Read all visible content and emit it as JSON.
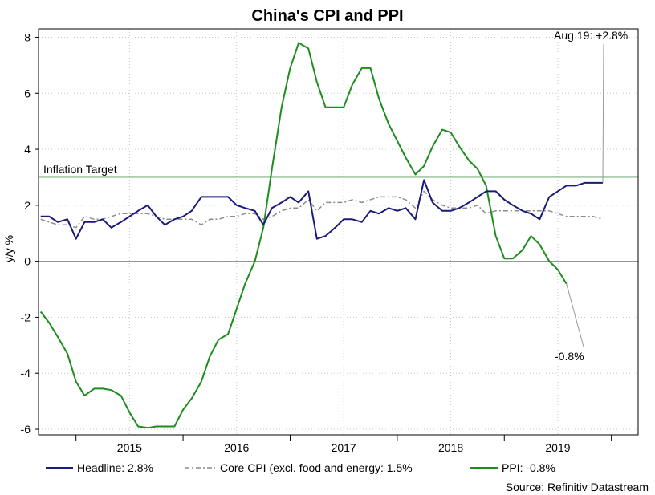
{
  "chart_data": {
    "type": "line",
    "title": "China's CPI and PPI",
    "ylabel": "y/y %",
    "xlabel": "",
    "ylim": [
      -6.2,
      8.3
    ],
    "y_ticks": [
      -6,
      -4,
      -2,
      0,
      2,
      4,
      6,
      8
    ],
    "x_tick_labels": [
      "2015",
      "2016",
      "2017",
      "2018",
      "2019"
    ],
    "x_tick_values": [
      2015.0,
      2016.0,
      2017.0,
      2018.0,
      2019.0
    ],
    "x_range": [
      2014.15,
      2019.75
    ],
    "grid": true,
    "legend_position": "bottom",
    "colors": {
      "headline": "#1a1a7a",
      "core": "#8c8c8c",
      "ppi": "#1e8c1e",
      "target": "#7fb07f",
      "zero": "#888888",
      "grid": "#c8c8c8"
    },
    "reference_lines": [
      {
        "name": "Inflation Target",
        "y": 3.0
      },
      {
        "name": "",
        "y": 0.0
      }
    ],
    "series": [
      {
        "name": "Headline: 2.8%",
        "points": [
          [
            2014.17,
            1.6
          ],
          [
            2014.25,
            1.6
          ],
          [
            2014.33,
            1.4
          ],
          [
            2014.42,
            1.5
          ],
          [
            2014.5,
            0.8
          ],
          [
            2014.58,
            1.4
          ],
          [
            2014.67,
            1.4
          ],
          [
            2014.75,
            1.5
          ],
          [
            2014.83,
            1.2
          ],
          [
            2014.92,
            1.4
          ],
          [
            2015.0,
            1.6
          ],
          [
            2015.08,
            1.8
          ],
          [
            2015.17,
            2.0
          ],
          [
            2015.25,
            1.6
          ],
          [
            2015.33,
            1.3
          ],
          [
            2015.42,
            1.5
          ],
          [
            2015.5,
            1.6
          ],
          [
            2015.58,
            1.8
          ],
          [
            2015.67,
            2.3
          ],
          [
            2015.75,
            2.3
          ],
          [
            2015.83,
            2.3
          ],
          [
            2015.92,
            2.3
          ],
          [
            2016.0,
            2.0
          ],
          [
            2016.08,
            1.9
          ],
          [
            2016.17,
            1.8
          ],
          [
            2016.25,
            1.3
          ],
          [
            2016.33,
            1.9
          ],
          [
            2016.42,
            2.1
          ],
          [
            2016.5,
            2.3
          ],
          [
            2016.58,
            2.1
          ],
          [
            2016.67,
            2.5
          ],
          [
            2016.75,
            0.8
          ],
          [
            2016.83,
            0.9
          ],
          [
            2016.92,
            1.2
          ],
          [
            2017.0,
            1.5
          ],
          [
            2017.08,
            1.5
          ],
          [
            2017.17,
            1.4
          ],
          [
            2017.25,
            1.8
          ],
          [
            2017.33,
            1.7
          ],
          [
            2017.42,
            1.9
          ],
          [
            2017.5,
            1.8
          ],
          [
            2017.58,
            1.9
          ],
          [
            2017.67,
            1.5
          ],
          [
            2017.75,
            2.9
          ],
          [
            2017.83,
            2.1
          ],
          [
            2017.92,
            1.8
          ],
          [
            2018.0,
            1.8
          ],
          [
            2018.08,
            1.9
          ],
          [
            2018.17,
            2.1
          ],
          [
            2018.25,
            2.3
          ],
          [
            2018.33,
            2.5
          ],
          [
            2018.42,
            2.5
          ],
          [
            2018.5,
            2.2
          ],
          [
            2018.58,
            2.0
          ],
          [
            2018.67,
            1.8
          ],
          [
            2018.75,
            1.7
          ],
          [
            2018.83,
            1.5
          ],
          [
            2018.92,
            2.3
          ],
          [
            2019.0,
            2.5
          ],
          [
            2019.08,
            2.7
          ],
          [
            2019.17,
            2.7
          ],
          [
            2019.25,
            2.8
          ],
          [
            2019.33,
            2.8
          ],
          [
            2019.42,
            2.8
          ]
        ]
      },
      {
        "name": "Core CPI (excl. food and energy: 1.5%",
        "points": [
          [
            2014.17,
            1.5
          ],
          [
            2014.25,
            1.4
          ],
          [
            2014.33,
            1.3
          ],
          [
            2014.42,
            1.3
          ],
          [
            2014.5,
            1.2
          ],
          [
            2014.58,
            1.6
          ],
          [
            2014.67,
            1.5
          ],
          [
            2014.75,
            1.5
          ],
          [
            2014.83,
            1.6
          ],
          [
            2014.92,
            1.7
          ],
          [
            2015.0,
            1.7
          ],
          [
            2015.08,
            1.7
          ],
          [
            2015.17,
            1.7
          ],
          [
            2015.25,
            1.6
          ],
          [
            2015.33,
            1.5
          ],
          [
            2015.42,
            1.5
          ],
          [
            2015.5,
            1.5
          ],
          [
            2015.58,
            1.5
          ],
          [
            2015.67,
            1.3
          ],
          [
            2015.75,
            1.5
          ],
          [
            2015.83,
            1.5
          ],
          [
            2015.92,
            1.6
          ],
          [
            2016.0,
            1.6
          ],
          [
            2016.08,
            1.7
          ],
          [
            2016.17,
            1.7
          ],
          [
            2016.25,
            1.5
          ],
          [
            2016.33,
            1.6
          ],
          [
            2016.42,
            1.8
          ],
          [
            2016.5,
            1.9
          ],
          [
            2016.58,
            1.9
          ],
          [
            2016.67,
            2.2
          ],
          [
            2016.75,
            1.8
          ],
          [
            2016.83,
            2.1
          ],
          [
            2016.92,
            2.1
          ],
          [
            2017.0,
            2.1
          ],
          [
            2017.08,
            2.2
          ],
          [
            2017.17,
            2.1
          ],
          [
            2017.25,
            2.2
          ],
          [
            2017.33,
            2.3
          ],
          [
            2017.42,
            2.3
          ],
          [
            2017.5,
            2.3
          ],
          [
            2017.58,
            2.2
          ],
          [
            2017.67,
            1.9
          ],
          [
            2017.75,
            2.5
          ],
          [
            2017.83,
            2.2
          ],
          [
            2017.92,
            2.0
          ],
          [
            2018.0,
            1.9
          ],
          [
            2018.08,
            1.9
          ],
          [
            2018.17,
            1.9
          ],
          [
            2018.25,
            2.0
          ],
          [
            2018.33,
            1.7
          ],
          [
            2018.42,
            1.8
          ],
          [
            2018.5,
            1.8
          ],
          [
            2018.58,
            1.8
          ],
          [
            2018.67,
            1.8
          ],
          [
            2018.75,
            1.8
          ],
          [
            2018.83,
            1.8
          ],
          [
            2018.92,
            1.8
          ],
          [
            2019.0,
            1.7
          ],
          [
            2019.08,
            1.6
          ],
          [
            2019.17,
            1.6
          ],
          [
            2019.25,
            1.6
          ],
          [
            2019.33,
            1.6
          ],
          [
            2019.42,
            1.5
          ]
        ]
      },
      {
        "name": "PPI: -0.8%",
        "points": [
          [
            2014.17,
            -1.8
          ],
          [
            2014.25,
            -2.2
          ],
          [
            2014.33,
            -2.7
          ],
          [
            2014.42,
            -3.3
          ],
          [
            2014.5,
            -4.3
          ],
          [
            2014.58,
            -4.8
          ],
          [
            2014.67,
            -4.55
          ],
          [
            2014.75,
            -4.55
          ],
          [
            2014.83,
            -4.6
          ],
          [
            2014.92,
            -4.8
          ],
          [
            2015.0,
            -5.4
          ],
          [
            2015.08,
            -5.9
          ],
          [
            2015.17,
            -5.95
          ],
          [
            2015.25,
            -5.9
          ],
          [
            2015.33,
            -5.9
          ],
          [
            2015.42,
            -5.9
          ],
          [
            2015.5,
            -5.3
          ],
          [
            2015.58,
            -4.9
          ],
          [
            2015.67,
            -4.3
          ],
          [
            2015.75,
            -3.4
          ],
          [
            2015.83,
            -2.8
          ],
          [
            2015.92,
            -2.6
          ],
          [
            2016.0,
            -1.7
          ],
          [
            2016.08,
            -0.8
          ],
          [
            2016.17,
            0.0
          ],
          [
            2016.25,
            1.2
          ],
          [
            2016.33,
            3.3
          ],
          [
            2016.42,
            5.5
          ],
          [
            2016.5,
            6.9
          ],
          [
            2016.58,
            7.8
          ],
          [
            2016.67,
            7.6
          ],
          [
            2016.75,
            6.4
          ],
          [
            2016.83,
            5.5
          ],
          [
            2016.92,
            5.5
          ],
          [
            2017.0,
            5.5
          ],
          [
            2017.08,
            6.3
          ],
          [
            2017.17,
            6.9
          ],
          [
            2017.25,
            6.9
          ],
          [
            2017.33,
            5.8
          ],
          [
            2017.42,
            4.9
          ],
          [
            2017.5,
            4.3
          ],
          [
            2017.58,
            3.7
          ],
          [
            2017.67,
            3.1
          ],
          [
            2017.75,
            3.4
          ],
          [
            2017.83,
            4.1
          ],
          [
            2017.92,
            4.7
          ],
          [
            2018.0,
            4.6
          ],
          [
            2018.08,
            4.1
          ],
          [
            2018.17,
            3.6
          ],
          [
            2018.25,
            3.3
          ],
          [
            2018.33,
            2.7
          ],
          [
            2018.42,
            0.9
          ],
          [
            2018.5,
            0.1
          ],
          [
            2018.58,
            0.1
          ],
          [
            2018.67,
            0.4
          ],
          [
            2018.75,
            0.9
          ],
          [
            2018.83,
            0.6
          ],
          [
            2018.92,
            0.0
          ],
          [
            2019.0,
            -0.3
          ],
          [
            2019.08,
            -0.8
          ]
        ]
      }
    ],
    "annotations": {
      "top": "Aug 19: +2.8%",
      "bottom": "-0.8%",
      "target_label": "Inflation Target"
    },
    "source": "Source: Refinitiv Datastream"
  }
}
